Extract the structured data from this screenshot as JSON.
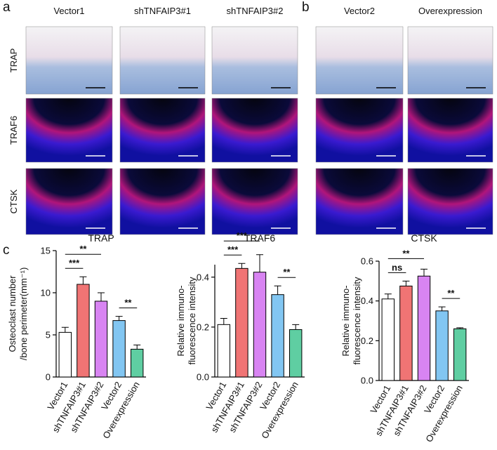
{
  "panels": {
    "a": {
      "letter": "a",
      "columns": [
        "Vector1",
        "shTNFAIP3#1",
        "shTNFAIP3#2"
      ],
      "rows": [
        "TRAP",
        "TRAF6",
        "CTSK"
      ]
    },
    "b": {
      "letter": "b",
      "columns": [
        "Vector2",
        "Overexpression"
      ]
    },
    "c": {
      "letter": "c"
    }
  },
  "chart_data": [
    {
      "type": "bar",
      "title": "TRAP",
      "ylabel": [
        "Osteoclast number",
        "/bone perimeter(mm⁻¹)"
      ],
      "categories": [
        "Vector1",
        "shTNFAIP3#1",
        "shTNFAIP3#2",
        "Vector2",
        "Overexpression"
      ],
      "values": [
        5.3,
        11.0,
        9.0,
        6.7,
        3.3
      ],
      "errors": [
        0.6,
        0.9,
        1.0,
        0.5,
        0.5
      ],
      "colors": [
        "#ffffff",
        "#f07474",
        "#d884f2",
        "#82c6f2",
        "#5fcea2"
      ],
      "ylim": [
        0,
        15
      ],
      "yticks": [
        0,
        5,
        10,
        15
      ],
      "annotations": [
        {
          "between": [
            0,
            1
          ],
          "text": "***"
        },
        {
          "between": [
            0,
            2
          ],
          "text": "**"
        },
        {
          "between": [
            3,
            4
          ],
          "text": "**"
        }
      ]
    },
    {
      "type": "bar",
      "title": "TRAF6",
      "ylabel": [
        "Relative immuno-",
        "fluorescence intensity"
      ],
      "categories": [
        "Vector1",
        "shTNFAIP3#1",
        "shTNFAIP3#2",
        "Vector2",
        "Overexpression"
      ],
      "values": [
        0.21,
        0.435,
        0.42,
        0.33,
        0.19
      ],
      "errors": [
        0.025,
        0.02,
        0.07,
        0.035,
        0.02
      ],
      "colors": [
        "#ffffff",
        "#f07474",
        "#d884f2",
        "#82c6f2",
        "#5fcea2"
      ],
      "ylim": [
        0,
        0.45
      ],
      "yticks": [
        {
          "value": 0,
          "label": "0.0"
        },
        0.2,
        0.4
      ],
      "annotations": [
        {
          "between": [
            0,
            1
          ],
          "text": "***"
        },
        {
          "between": [
            0,
            2
          ],
          "text": "***"
        },
        {
          "between": [
            3,
            4
          ],
          "text": "**"
        }
      ]
    },
    {
      "type": "bar",
      "title": "CTSK",
      "ylabel": [
        "Relative immuno-",
        "fluorescence intensity"
      ],
      "categories": [
        "Vector1",
        "shTNFAIP3#1",
        "shTNFAIP3#2",
        "Vector2",
        "Overexpression"
      ],
      "values": [
        0.41,
        0.475,
        0.525,
        0.35,
        0.26
      ],
      "errors": [
        0.025,
        0.025,
        0.035,
        0.02,
        0.005
      ],
      "colors": [
        "#ffffff",
        "#f07474",
        "#d884f2",
        "#82c6f2",
        "#5fcea2"
      ],
      "ylim": [
        0,
        0.6
      ],
      "yticks": [
        {
          "value": 0,
          "label": "0.0"
        },
        0.2,
        0.4,
        0.6
      ],
      "annotations": [
        {
          "between": [
            0,
            1
          ],
          "text": "ns"
        },
        {
          "between": [
            0,
            2
          ],
          "text": "**"
        },
        {
          "between": [
            3,
            4
          ],
          "text": "**"
        }
      ]
    }
  ]
}
